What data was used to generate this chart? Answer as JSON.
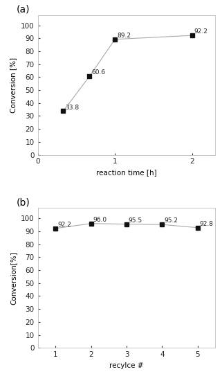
{
  "plot_a": {
    "title": "(a)",
    "x": [
      0.33,
      0.67,
      1.0,
      2.0
    ],
    "y": [
      33.8,
      60.6,
      89.2,
      92.2
    ],
    "labels": [
      "33.8",
      "60.6",
      "89.2",
      "92.2"
    ],
    "xlabel": "reaction time [h]",
    "ylabel": "Conversion [%]",
    "xlim": [
      0,
      2.3
    ],
    "ylim": [
      0,
      108
    ],
    "yticks": [
      0,
      10,
      20,
      30,
      40,
      50,
      60,
      70,
      80,
      90,
      100
    ],
    "xticks": [
      0,
      1,
      2
    ],
    "xtick_labels": [
      "0",
      "1",
      "2"
    ]
  },
  "plot_b": {
    "title": "(b)",
    "x": [
      1,
      2,
      3,
      4,
      5
    ],
    "y": [
      92.2,
      96.0,
      95.5,
      95.2,
      92.8
    ],
    "labels": [
      "92.2",
      "96.0",
      "95.5",
      "95.2",
      "92.8"
    ],
    "xlabel": "recylce #",
    "ylabel": "Conversion[%]",
    "xlim": [
      0.5,
      5.5
    ],
    "ylim": [
      0,
      108
    ],
    "yticks": [
      0,
      10,
      20,
      30,
      40,
      50,
      60,
      70,
      80,
      90,
      100
    ],
    "xticks": [
      1,
      2,
      3,
      4,
      5
    ],
    "xtick_labels": [
      "1",
      "2",
      "3",
      "4",
      "5"
    ]
  },
  "line_color": "#aaaaaa",
  "marker": "s",
  "marker_color": "#111111",
  "marker_size": 4,
  "font_size_label": 7.5,
  "font_size_title": 10,
  "font_size_annot": 6.5,
  "font_size_tick": 7.5,
  "spine_color": "#bbbbbb",
  "tick_color": "#333333"
}
